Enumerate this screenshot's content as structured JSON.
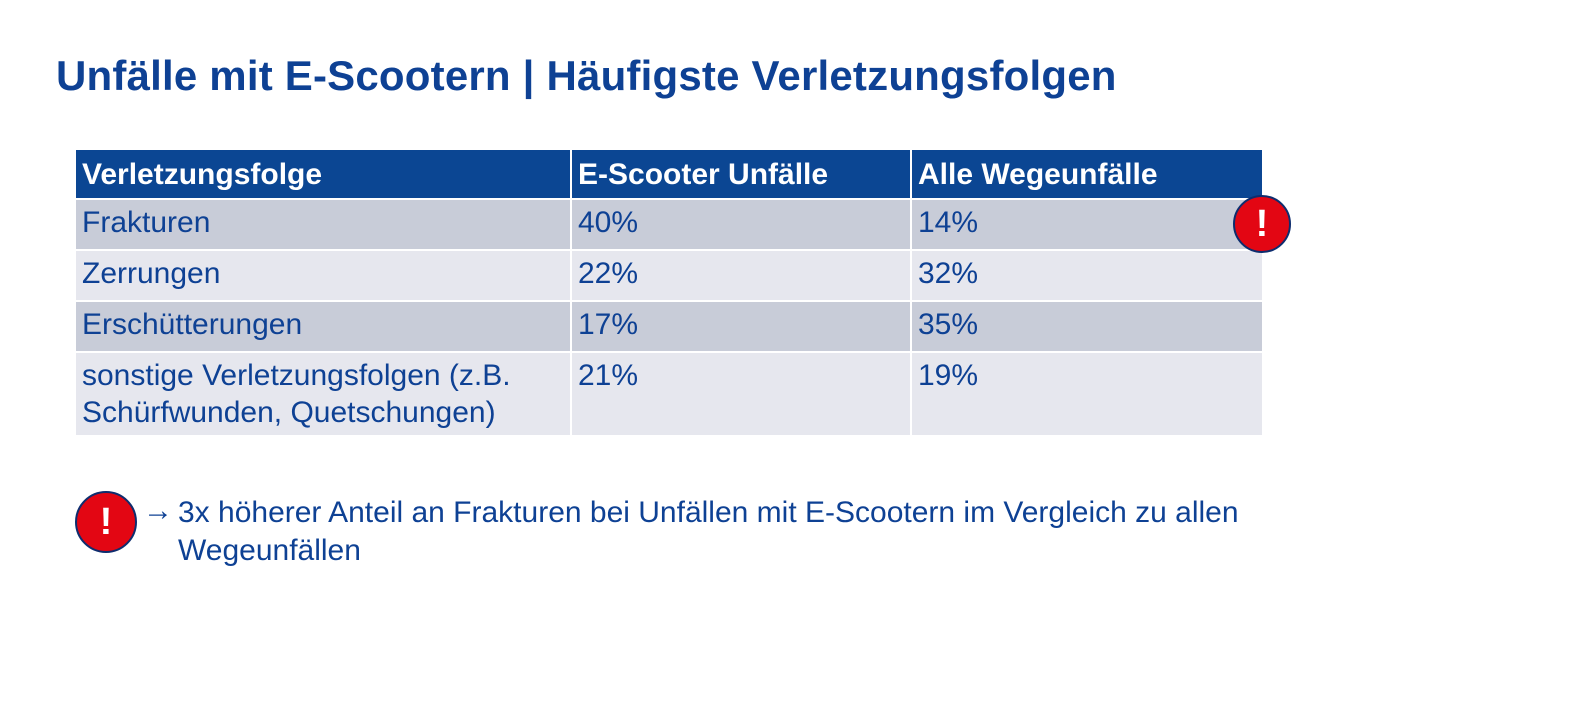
{
  "title": "Unfälle mit E-Scootern | Häufigste Verletzungsfolgen",
  "table": {
    "headers": [
      "Verletzungsfolge",
      "E-Scooter Unfälle",
      "Alle Wegeunfälle"
    ],
    "rows": [
      {
        "folge": "Frakturen",
        "e_scooter": "40%",
        "alle": "14%"
      },
      {
        "folge": "Zerrungen",
        "e_scooter": "22%",
        "alle": "32%"
      },
      {
        "folge": "Erschütterungen",
        "e_scooter": "17%",
        "alle": "35%"
      },
      {
        "folge": "sonstige Verletzungsfolgen (z.B. Schürfwunden, Quetschungen)",
        "e_scooter": "21%",
        "alle": "19%"
      }
    ]
  },
  "alert_symbol": "!",
  "alert_color": "#e30613",
  "note": {
    "arrow": "→",
    "text": "3x höherer Anteil an Frakturen bei Unfällen mit E-Scootern im Vergleich zu allen Wegeunfällen"
  }
}
